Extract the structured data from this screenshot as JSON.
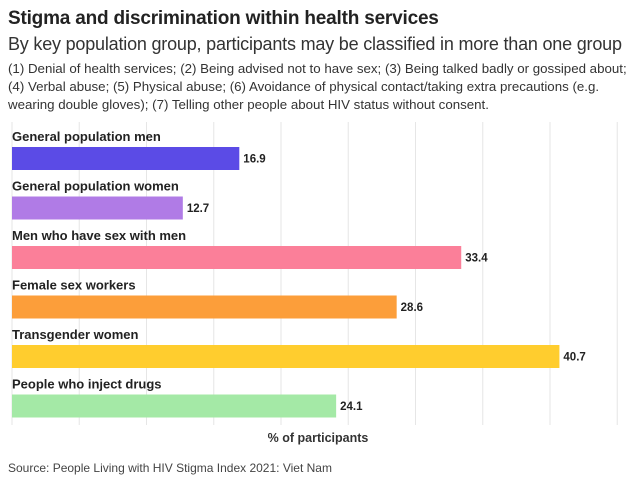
{
  "title": "Stigma and discrimination within health services",
  "subtitle": "By key population group, participants may be classified in more than one group",
  "notes": "(1) Denial of health services; (2) Being advised not to have sex; (3) Being talked badly or gossiped about; (4) Verbal abuse; (5) Physical abuse; (6) Avoidance of physical contact/taking extra precautions (e.g. wearing double gloves); (7) Telling other people about HIV status without consent.",
  "source": "Source: People Living with HIV Stigma Index 2021: Viet Nam",
  "chart_data": {
    "type": "bar",
    "orientation": "horizontal",
    "categories": [
      "General population men",
      "General population women",
      "Men who have sex with men",
      "Female sex workers",
      "Transgender women",
      "People who inject drugs"
    ],
    "values": [
      16.9,
      12.7,
      33.4,
      28.6,
      40.7,
      24.1
    ],
    "colors": [
      "#5b4be6",
      "#b07be6",
      "#fb7f99",
      "#fc9e3a",
      "#ffcd2e",
      "#a4e9a6"
    ],
    "xlabel": "% of participants",
    "xlim": [
      0,
      45
    ],
    "grid": true,
    "data_labels": true
  }
}
